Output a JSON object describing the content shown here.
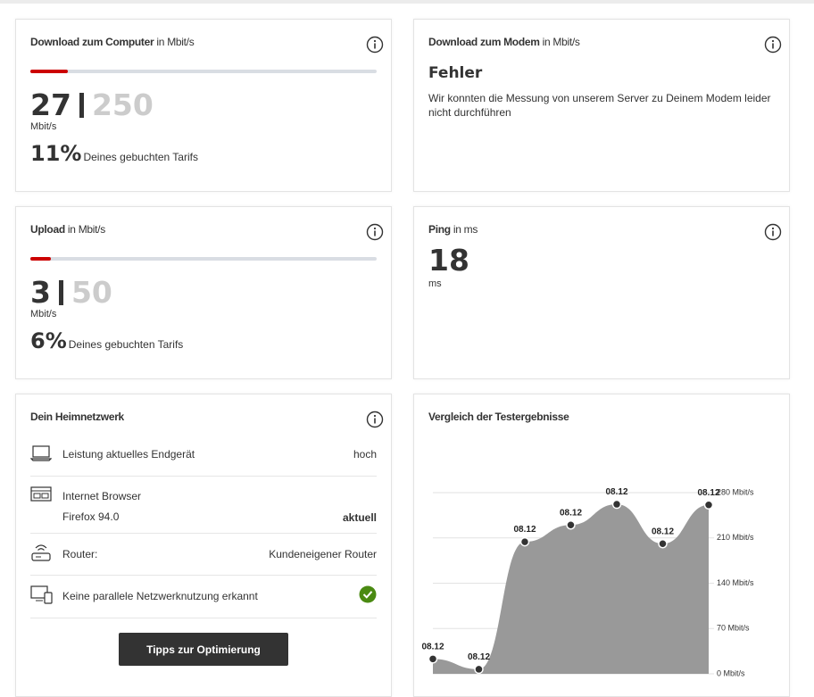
{
  "download_computer": {
    "title": "Download zum Computer",
    "unit_title": "in Mbit/s",
    "value": 27,
    "max": 250,
    "unit": "Mbit/s",
    "percent": "11%",
    "percent_text": "Deines gebuchten Tarifs"
  },
  "download_modem": {
    "title": "Download zum Modem",
    "unit_title": "in Mbit/s",
    "status": "Fehler",
    "message": "Wir konnten die Messung von unserem Server zu Deinem Modem leider nicht durchführen"
  },
  "upload": {
    "title": "Upload",
    "unit_title": "in Mbit/s",
    "value": 3,
    "max": 50,
    "unit": "Mbit/s",
    "percent": "6%",
    "percent_text": "Deines gebuchten Tarifs"
  },
  "ping": {
    "title": "Ping",
    "unit_title": "in ms",
    "value": 18,
    "unit": "ms"
  },
  "home_network": {
    "title": "Dein Heimnetzwerk",
    "items": [
      {
        "label": "Leistung aktuelles Endgerät",
        "value": "hoch"
      },
      {
        "label": "Internet Browser",
        "detail": "Firefox 94.0",
        "value": "aktuell"
      },
      {
        "label": "Router:",
        "value": "Kundeneigener Router"
      },
      {
        "label": "Keine parallele Netzwerknutzung erkannt"
      }
    ],
    "button": "Tipps zur Optimierung"
  },
  "chart_data": {
    "type": "area",
    "title": "Vergleich der Testergebnisse",
    "categories": [
      "08.12",
      "08.12",
      "08.12",
      "08.12",
      "08.12",
      "08.12",
      "08.12"
    ],
    "values": [
      23,
      7,
      204,
      230,
      262,
      201,
      261
    ],
    "color": "#999999",
    "ylim": [
      0,
      280
    ],
    "yticks": [
      {
        "value": 0,
        "label": "0 Mbit/s"
      },
      {
        "value": 70,
        "label": "70 Mbit/s"
      },
      {
        "value": 140,
        "label": "140 Mbit/s"
      },
      {
        "value": 210,
        "label": "210 Mbit/s"
      },
      {
        "value": 280,
        "label": "280 Mbit/s"
      }
    ],
    "grid": true
  }
}
